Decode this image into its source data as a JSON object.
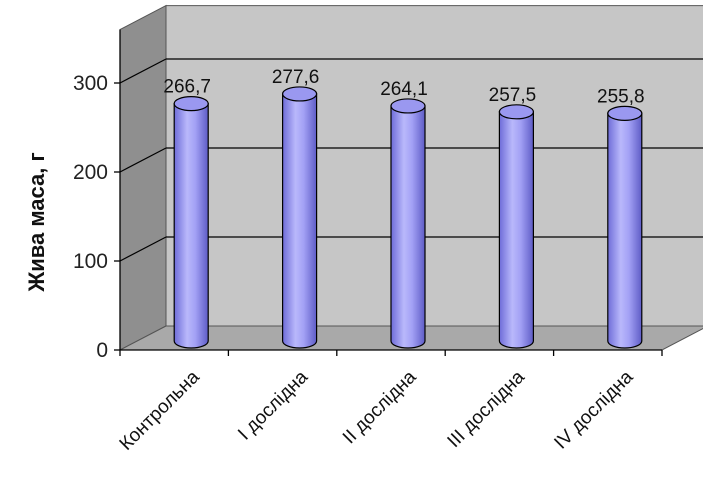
{
  "chart_data": {
    "type": "bar",
    "style": "3d-cylinder",
    "title": "",
    "xlabel": "",
    "ylabel": "Жива маса, г",
    "ylim": [
      0,
      300
    ],
    "yticks": [
      "0",
      "100",
      "200",
      "300"
    ],
    "grid": true,
    "legend": "none",
    "categories": [
      "Контрольна",
      "I дослідна",
      "II дослідна",
      "III дослідна",
      "IV дослідна"
    ],
    "values": [
      266.7,
      277.6,
      264.1,
      257.5,
      255.8
    ],
    "value_labels": [
      "266,7",
      "277,6",
      "264,1",
      "257,5",
      "255,8"
    ],
    "colors": {
      "bar_fill": "#9a98f0",
      "bar_edge": "#000000",
      "wall": "#c6c6c6",
      "side_wall": "#8f8f8f",
      "floor": "#a9a9a9"
    }
  }
}
